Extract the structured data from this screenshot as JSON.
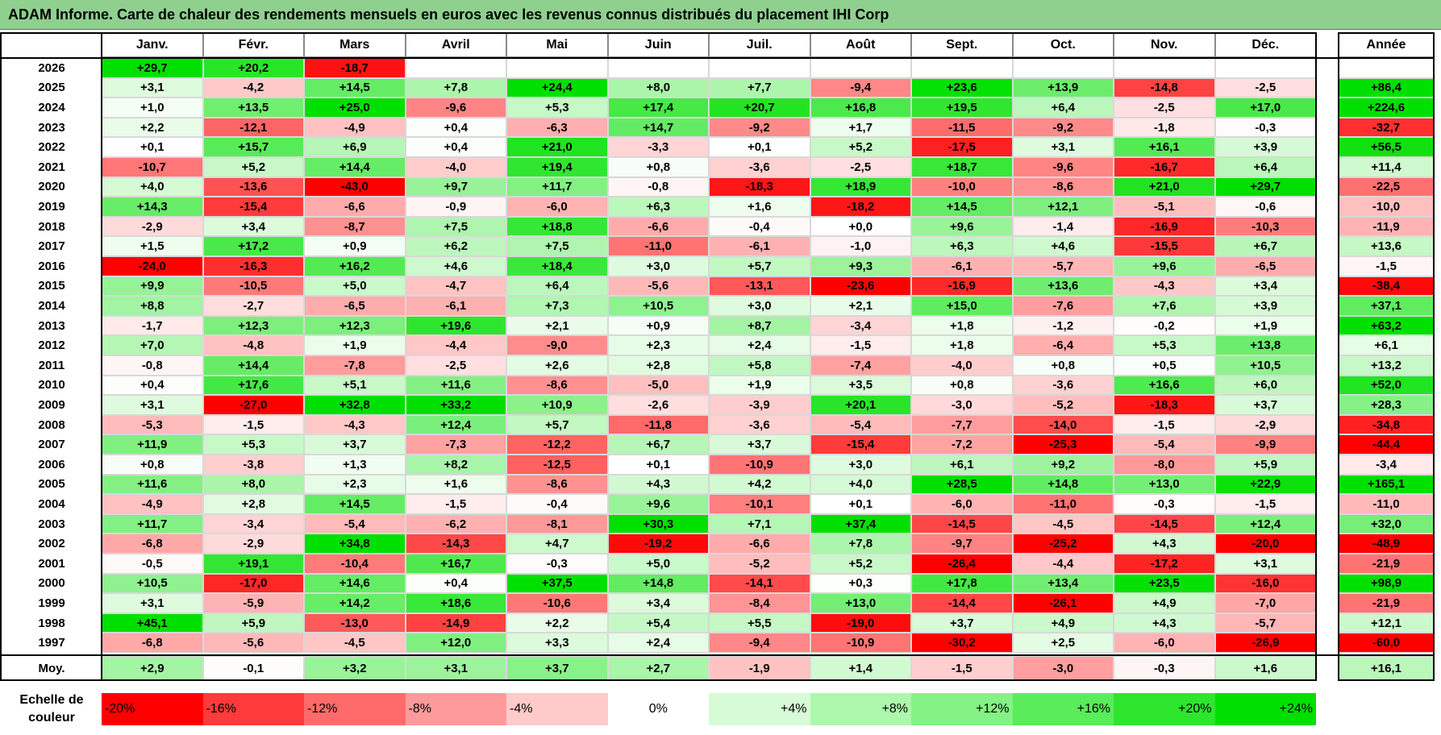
{
  "title": "ADAM Informe. Carte de chaleur des rendements mensuels en euros avec les revenus connus distribués du placement IHI Corp",
  "chart_data": {
    "type": "heatmap",
    "title": "ADAM Informe. Carte de chaleur des rendements mensuels en euros avec les revenus connus distribués du placement IHI Corp",
    "columns": [
      "Janv.",
      "Févr.",
      "Mars",
      "Avril",
      "Mai",
      "Juin",
      "Juil.",
      "Août",
      "Sept.",
      "Oct.",
      "Nov.",
      "Déc."
    ],
    "year_column_label": "Année",
    "rows": [
      {
        "year": "2026",
        "values": [
          "+29,7",
          "+20,2",
          "-18,7",
          "",
          "",
          "",
          "",
          "",
          "",
          "",
          "",
          ""
        ],
        "annual": ""
      },
      {
        "year": "2025",
        "values": [
          "+3,1",
          "-4,2",
          "+14,5",
          "+7,8",
          "+24,4",
          "+8,0",
          "+7,7",
          "-9,4",
          "+23,6",
          "+13,9",
          "-14,8",
          "-2,5"
        ],
        "annual": "+86,4"
      },
      {
        "year": "2024",
        "values": [
          "+1,0",
          "+13,5",
          "+25,0",
          "-9,6",
          "+5,3",
          "+17,4",
          "+20,7",
          "+16,8",
          "+19,5",
          "+6,4",
          "-2,5",
          "+17,0"
        ],
        "annual": "+224,6"
      },
      {
        "year": "2023",
        "values": [
          "+2,2",
          "-12,1",
          "-4,9",
          "+0,4",
          "-6,3",
          "+14,7",
          "-9,2",
          "+1,7",
          "-11,5",
          "-9,2",
          "-1,8",
          "-0,3"
        ],
        "annual": "-32,7"
      },
      {
        "year": "2022",
        "values": [
          "+0,1",
          "+15,7",
          "+6,9",
          "+0,4",
          "+21,0",
          "-3,3",
          "+0,1",
          "+5,2",
          "-17,5",
          "+3,1",
          "+16,1",
          "+3,9"
        ],
        "annual": "+56,5"
      },
      {
        "year": "2021",
        "values": [
          "-10,7",
          "+5,2",
          "+14,4",
          "-4,0",
          "+19,4",
          "+0,8",
          "-3,6",
          "-2,5",
          "+18,7",
          "-9,6",
          "-16,7",
          "+6,4"
        ],
        "annual": "+11,4"
      },
      {
        "year": "2020",
        "values": [
          "+4,0",
          "-13,6",
          "-43,0",
          "+9,7",
          "+11,7",
          "-0,8",
          "-18,3",
          "+18,9",
          "-10,0",
          "-8,6",
          "+21,0",
          "+29,7"
        ],
        "annual": "-22,5"
      },
      {
        "year": "2019",
        "values": [
          "+14,3",
          "-15,4",
          "-6,6",
          "-0,9",
          "-6,0",
          "+6,3",
          "+1,6",
          "-18,2",
          "+14,5",
          "+12,1",
          "-5,1",
          "-0,6"
        ],
        "annual": "-10,0"
      },
      {
        "year": "2018",
        "values": [
          "-2,9",
          "+3,4",
          "-8,7",
          "+7,5",
          "+18,8",
          "-6,6",
          "-0,4",
          "+0,0",
          "+9,6",
          "-1,4",
          "-16,9",
          "-10,3"
        ],
        "annual": "-11,9"
      },
      {
        "year": "2017",
        "values": [
          "+1,5",
          "+17,2",
          "+0,9",
          "+6,2",
          "+7,5",
          "-11,0",
          "-6,1",
          "-1,0",
          "+6,3",
          "+4,6",
          "-15,5",
          "+6,7"
        ],
        "annual": "+13,6"
      },
      {
        "year": "2016",
        "values": [
          "-24,0",
          "-16,3",
          "+16,2",
          "+4,6",
          "+18,4",
          "+3,0",
          "+5,7",
          "+9,3",
          "-6,1",
          "-5,7",
          "+9,6",
          "-6,5"
        ],
        "annual": "-1,5"
      },
      {
        "year": "2015",
        "values": [
          "+9,9",
          "-10,5",
          "+5,0",
          "-4,7",
          "+6,4",
          "-5,6",
          "-13,1",
          "-23,6",
          "-16,9",
          "+13,6",
          "-4,3",
          "+3,4"
        ],
        "annual": "-38,4"
      },
      {
        "year": "2014",
        "values": [
          "+8,8",
          "-2,7",
          "-6,5",
          "-6,1",
          "+7,3",
          "+10,5",
          "+3,0",
          "+2,1",
          "+15,0",
          "-7,6",
          "+7,6",
          "+3,9"
        ],
        "annual": "+37,1"
      },
      {
        "year": "2013",
        "values": [
          "-1,7",
          "+12,3",
          "+12,3",
          "+19,6",
          "+2,1",
          "+0,9",
          "+8,7",
          "-3,4",
          "+1,8",
          "-1,2",
          "-0,2",
          "+1,9"
        ],
        "annual": "+63,2"
      },
      {
        "year": "2012",
        "values": [
          "+7,0",
          "-4,8",
          "+1,9",
          "-4,4",
          "-9,0",
          "+2,3",
          "+2,4",
          "-1,5",
          "+1,8",
          "-6,4",
          "+5,3",
          "+13,8"
        ],
        "annual": "+6,1"
      },
      {
        "year": "2011",
        "values": [
          "-0,8",
          "+14,4",
          "-7,8",
          "-2,5",
          "+2,6",
          "+2,8",
          "+5,8",
          "-7,4",
          "-4,0",
          "+0,8",
          "+0,5",
          "+10,5"
        ],
        "annual": "+13,2"
      },
      {
        "year": "2010",
        "values": [
          "+0,4",
          "+17,6",
          "+5,1",
          "+11,6",
          "-8,6",
          "-5,0",
          "+1,9",
          "+3,5",
          "+0,8",
          "-3,6",
          "+16,6",
          "+6,0"
        ],
        "annual": "+52,0"
      },
      {
        "year": "2009",
        "values": [
          "+3,1",
          "-27,0",
          "+32,8",
          "+33,2",
          "+10,9",
          "-2,6",
          "-3,9",
          "+20,1",
          "-3,0",
          "-5,2",
          "-18,3",
          "+3,7"
        ],
        "annual": "+28,3"
      },
      {
        "year": "2008",
        "values": [
          "-5,3",
          "-1,5",
          "-4,3",
          "+12,4",
          "+5,7",
          "-11,8",
          "-3,6",
          "-5,4",
          "-7,7",
          "-14,0",
          "-1,5",
          "-2,9"
        ],
        "annual": "-34,8"
      },
      {
        "year": "2007",
        "values": [
          "+11,9",
          "+5,3",
          "+3,7",
          "-7,3",
          "-12,2",
          "+6,7",
          "+3,7",
          "-15,4",
          "-7,2",
          "-25,3",
          "-5,4",
          "-9,9"
        ],
        "annual": "-44,4"
      },
      {
        "year": "2006",
        "values": [
          "+0,8",
          "-3,8",
          "+1,3",
          "+8,2",
          "-12,5",
          "+0,1",
          "-10,9",
          "+3,0",
          "+6,1",
          "+9,2",
          "-8,0",
          "+5,9"
        ],
        "annual": "-3,4"
      },
      {
        "year": "2005",
        "values": [
          "+11,6",
          "+8,0",
          "+2,3",
          "+1,6",
          "-8,6",
          "+4,3",
          "+4,2",
          "+4,0",
          "+28,5",
          "+14,8",
          "+13,0",
          "+22,9"
        ],
        "annual": "+165,1"
      },
      {
        "year": "2004",
        "values": [
          "-4,9",
          "+2,8",
          "+14,5",
          "-1,5",
          "-0,4",
          "+9,6",
          "-10,1",
          "+0,1",
          "-6,0",
          "-11,0",
          "-0,3",
          "-1,5"
        ],
        "annual": "-11,0"
      },
      {
        "year": "2003",
        "values": [
          "+11,7",
          "-3,4",
          "-5,4",
          "-6,2",
          "-8,1",
          "+30,3",
          "+7,1",
          "+37,4",
          "-14,5",
          "-4,5",
          "-14,5",
          "+12,4"
        ],
        "annual": "+32,0"
      },
      {
        "year": "2002",
        "values": [
          "-6,8",
          "-2,9",
          "+34,8",
          "-14,3",
          "+4,7",
          "-19,2",
          "-6,6",
          "+7,8",
          "-9,7",
          "-25,2",
          "+4,3",
          "-20,0"
        ],
        "annual": "-48,9"
      },
      {
        "year": "2001",
        "values": [
          "-0,5",
          "+19,1",
          "-10,4",
          "+16,7",
          "-0,3",
          "+5,0",
          "-5,2",
          "+5,2",
          "-26,4",
          "-4,4",
          "-17,2",
          "+3,1"
        ],
        "annual": "-21,9"
      },
      {
        "year": "2000",
        "values": [
          "+10,5",
          "-17,0",
          "+14,6",
          "+0,4",
          "+37,5",
          "+14,8",
          "-14,1",
          "+0,3",
          "+17,8",
          "+13,4",
          "+23,5",
          "-16,0"
        ],
        "annual": "+98,9"
      },
      {
        "year": "1999",
        "values": [
          "+3,1",
          "-5,9",
          "+14,2",
          "+18,6",
          "-10,6",
          "+3,4",
          "-8,4",
          "+13,0",
          "-14,4",
          "-26,1",
          "+4,9",
          "-7,0"
        ],
        "annual": "-21,9"
      },
      {
        "year": "1998",
        "values": [
          "+45,1",
          "+5,9",
          "-13,0",
          "-14,9",
          "+2,2",
          "+5,4",
          "+5,5",
          "-19,0",
          "+3,7",
          "+4,9",
          "+4,3",
          "-5,7"
        ],
        "annual": "+12,1"
      },
      {
        "year": "1997",
        "values": [
          "-6,8",
          "-5,6",
          "-4,5",
          "+12,0",
          "+3,3",
          "+2,4",
          "-9,4",
          "-10,9",
          "-30,2",
          "+2,5",
          "-6,0",
          "-26,9"
        ],
        "annual": "-60,0"
      }
    ],
    "average_row": {
      "label": "Moy.",
      "values": [
        "+2,9",
        "-0,1",
        "+3,2",
        "+3,1",
        "+3,7",
        "+2,7",
        "-1,9",
        "+1,4",
        "-1,5",
        "-3,0",
        "-0,3",
        "+1,6"
      ],
      "annual": "+16,1"
    },
    "color_scale": {
      "label": "Echelle de couleur",
      "stops": [
        "-20%",
        "-16%",
        "-12%",
        "-8%",
        "-4%",
        "0%",
        "+4%",
        "+8%",
        "+12%",
        "+16%",
        "+20%",
        "+24%"
      ],
      "colors": [
        "#ff0000",
        "#ff3a3a",
        "#ff6a6a",
        "#ff9a9a",
        "#ffcaca",
        "#ffffff",
        "#d6fbd6",
        "#adf7ad",
        "#84f284",
        "#5aec5a",
        "#2ee62e",
        "#00e000"
      ]
    }
  }
}
